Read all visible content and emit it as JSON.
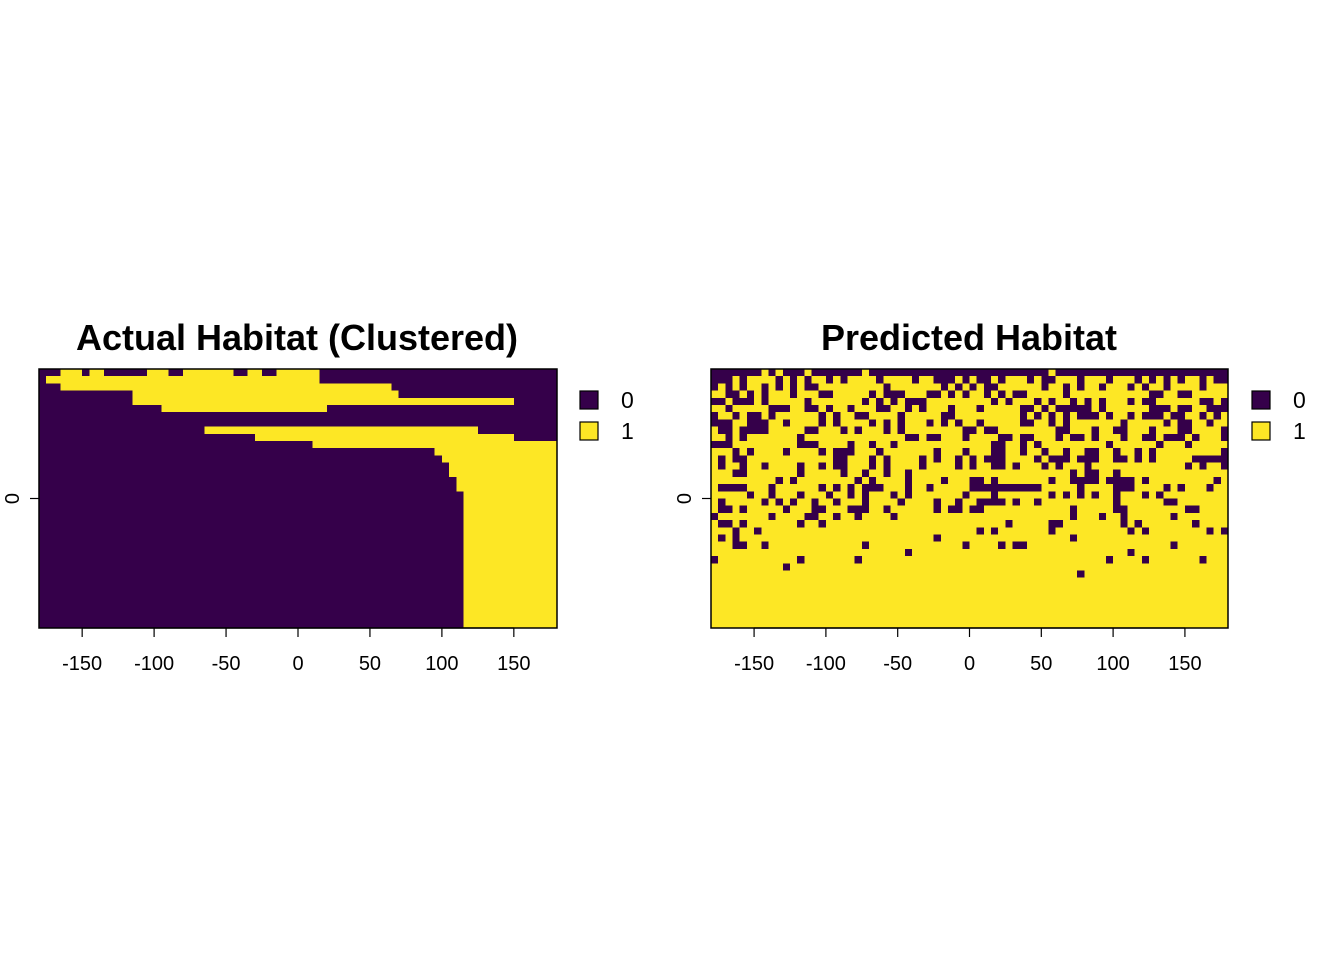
{
  "chart_data": [
    {
      "type": "heatmap",
      "title": "Actual Habitat (Clustered)",
      "xlim": [
        -180,
        180
      ],
      "xticks": [
        -150,
        -100,
        -50,
        0,
        50,
        100,
        150
      ],
      "yticks": [
        0
      ],
      "legend": {
        "placement": "right",
        "entries": [
          {
            "label": "0",
            "color": "#35004a"
          },
          {
            "label": "1",
            "color": "#fde725"
          }
        ]
      },
      "grid": [
        "000111011000000111001111111001100111111000000000000000000000000000000000",
        "011111111111111111111111111111111111111000000000000000000000000000000000",
        "000111111111111111111111111111111111111111111111100000000000000000000000",
        "000000000000011111111111111111111111111111111111110000000000000000000000",
        "000000000000011111111111111111111111111111111111111111111111111111000000",
        "000000000000000001111111111111111111111100000000000000000000000000000000",
        "000000000000000000000000000000000000000000000000000000000000000000000000",
        "000000000000000000000000000000000000000000000000000000000000000000000000",
        "000000000000000000000001111111111111111111111111111111111111100000000000",
        "000000000000000000000000000000111111111111111111111111111111111111000000",
        "000000000000000000000000000000000000001111111111111111111111111111111111",
        "000000000000000000000000000000000000000000000000000000011111111111111111",
        "000000000000000000000000000000000000000000000000000000001111111111111111",
        "000000000000000000000000000000000000000000000000000000000111111111111111",
        "000000000000000000000000000000000000000000000000000000000111111111111111",
        "000000000000000000000000000000000000000000000000000000000011111111111111",
        "000000000000000000000000000000000000000000000000000000000011111111111111",
        "000000000000000000000000000000000000000000000000000000000001111111111111",
        "000000000000000000000000000000000000000000000000000000000001111111111111",
        "000000000000000000000000000000000000000000000000000000000001111111111111",
        "000000000000000000000000000000000000000000000000000000000001111111111111",
        "000000000000000000000000000000000000000000000000000000000001111111111111",
        "000000000000000000000000000000000000000000000000000000000001111111111111",
        "000000000000000000000000000000000000000000000000000000000001111111111111",
        "000000000000000000000000000000000000000000000000000000000001111111111111",
        "000000000000000000000000000000000000000000000000000000000001111111111111",
        "000000000000000000000000000000000000000000000000000000000001111111111111",
        "000000000000000000000000000000000000000000000000000000000001111111111111",
        "000000000000000000000000000000000000000000000000000000000001111111111111",
        "000000000000000000000000000000000000000000000000000000000001111111111111",
        "000000000000000000000000000000000000000000000000000000000001111111111111",
        "000000000000000000000000000000000000000000000000000000000001111111111111",
        "000000000000000000000000000000000000000000000000000000000001111111111111",
        "000000000000000000000000000000000000000000000000000000000001111111111111",
        "000000000000000000000000000000000000000000000000000000000001111111111111",
        "000000000000000000000000000000000000000000000000000000000001111111111111"
      ]
    },
    {
      "type": "heatmap",
      "title": "Predicted Habitat",
      "xlim": [
        -180,
        180
      ],
      "xticks": [
        -150,
        -100,
        -50,
        0,
        50,
        100,
        150
      ],
      "yticks": [
        0
      ],
      "legend": {
        "placement": "right",
        "entries": [
          {
            "label": "0",
            "color": "#35004a"
          },
          {
            "label": "1",
            "color": "#fde725"
          }
        ]
      },
      "grid": [
        "000000010100010000000100000000000000000000000001000000000000000000000000",
        "000101111010101101011110111101100010100101110100111011101110101010110100",
        "010101101010100111111111011111110101010011111101101011011101011011110111",
        "110010101110111001111101000111001010110101001111101111111111100110011111",
        "001000101111101111111010101000111111111010111010110101011101001111110010",
        "110111110001100101101110011010111011101111100101000001011111100010011000",
        "011010010111111010110011110111110011111111101010101000101101000100110101",
        "000110001101111010111101010111010101101111100110101111111011111010011011",
        "100100001111100111010111010111111110010011111111001110110011101110011110",
        "110101111111011111111111111001001110111100100111010010111011001000101110",
        "000111111111000111101101101111111111111001101011111111101111110111011111",
        "111010111101111010001110111111101110111001101101101100110110101111111110",
        "101001111111111110011101011110101101010001111010001000110010101111100000",
        "101101101111011010011101011110111101011001011101011101111111111111010110",
        "111001111111011111011011011011111111111111111111110100110111111111111111",
        "111111111010111111110101111011110111001011111110110000100001011111111101",
        "100001110111111010101000111011011111000000000011111011110001111010111011",
        "111110110111011101101011101011111110111011111110101010110111010111111111",
        "101111101010110110111011110111101101100001011011111111110111111001111111",
        "100101111101110011100011011111101001001111111111110111110011111111001111",
        "011111110111100110110111101111111111111111111111110111011011111101111111",
        "100101111111011011111111111111111111111110111110011111111010111111101111",
        "111011011111111111111111111111111111101011111110111111111101011111111010",
        "101011111111111111111111111111101111111111111111110111111111111111111111",
        "111001101111111111111011111111111110111101001111111111111111111101111111",
        "111111111111111111111111111011111111111111111111111111111101111111111111",
        "011111111111011111110111111111111111111111111111111111101111011111110111",
        "111111111101111111111111111111111111111111111111111111111111111111111111",
        "111111111111111111111111111111111111111111111111111011111111111111111111",
        "111111111111111111111111111111111111111111111111111111111111111111111111",
        "111111111111111111111111111111111111111111111111111111111111111111111111",
        "111111111111111111111111111111111111111111111111111111111111111111111111",
        "111111111111111111111111111111111111111111111111111111111111111111111111",
        "111111111111111111111111111111111111111111111111111111111111111111111111",
        "111111111111111111111111111111111111111111111111111111111111111111111111",
        "111111111111111111111111111111111111111111111111111111111111111111111111"
      ]
    }
  ]
}
